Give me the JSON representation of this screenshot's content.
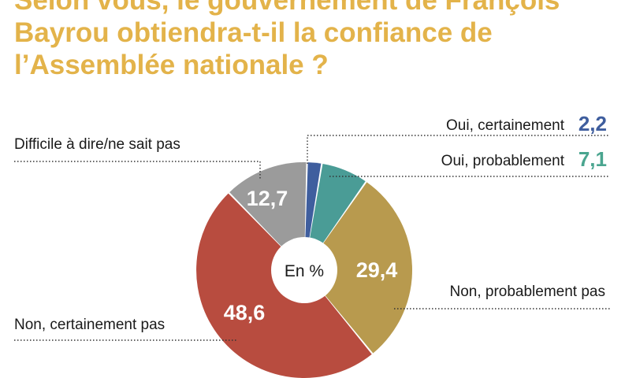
{
  "title_lines": [
    "Selon vous, le gouvernement de François",
    "Bayrou obtiendra-t-il la confiance de",
    "l’Assemblée nationale ?"
  ],
  "chart_data": {
    "type": "pie",
    "unit_label": "En %",
    "slices": [
      {
        "label": "Oui, certainement",
        "value": 2.2,
        "value_text": "2,2",
        "color": "#3f5e9e"
      },
      {
        "label": "Oui, probablement",
        "value": 7.1,
        "value_text": "7,1",
        "color": "#4a9c96"
      },
      {
        "label": "Non, probablement pas",
        "value": 29.4,
        "value_text": "29,4",
        "color": "#b89a4e"
      },
      {
        "label": "Non, certainement pas",
        "value": 48.6,
        "value_text": "48,6",
        "color": "#b84c3f"
      },
      {
        "label": "Difficile à dire/ne sait pas",
        "value": 12.7,
        "value_text": "12,7",
        "color": "#9b9b9b"
      }
    ],
    "value_label_colors": {
      "oui_certainement": "#3f5e9e",
      "oui_probablement": "#4aa58f"
    }
  }
}
